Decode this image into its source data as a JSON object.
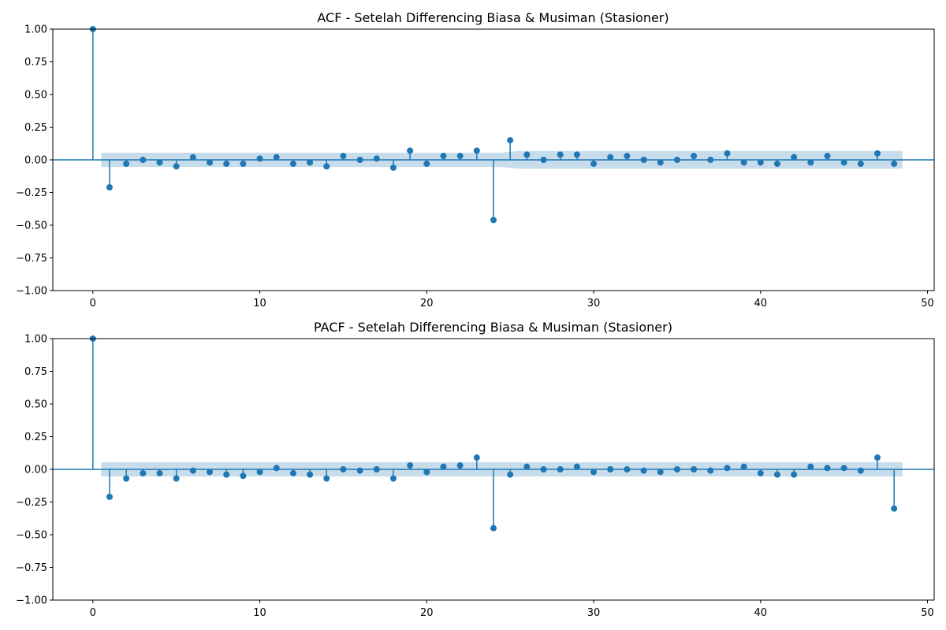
{
  "chart_data": [
    {
      "type": "stem",
      "title": "ACF - Setelah Differencing Biasa & Musiman (Stasioner)",
      "xlabel": "",
      "ylabel": "",
      "xlim": [
        -2.4,
        50.4
      ],
      "ylim": [
        -1.0,
        1.0
      ],
      "xticks": [
        0,
        10,
        20,
        30,
        40,
        50
      ],
      "yticks": [
        1.0,
        0.75,
        0.5,
        0.25,
        0.0,
        -0.25,
        -0.5,
        -0.75,
        -1.0
      ],
      "ytick_labels": [
        "1.00",
        "0.75",
        "0.50",
        "0.25",
        "0.00",
        "−0.25",
        "−0.50",
        "−0.75",
        "−1.00"
      ],
      "xtick_labels": [
        "0",
        "10",
        "20",
        "30",
        "40",
        "50"
      ],
      "lags": [
        0,
        1,
        2,
        3,
        4,
        5,
        6,
        7,
        8,
        9,
        10,
        11,
        12,
        13,
        14,
        15,
        16,
        17,
        18,
        19,
        20,
        21,
        22,
        23,
        24,
        25,
        26,
        27,
        28,
        29,
        30,
        31,
        32,
        33,
        34,
        35,
        36,
        37,
        38,
        39,
        40,
        41,
        42,
        43,
        44,
        45,
        46,
        47,
        48
      ],
      "values": [
        1.0,
        -0.21,
        -0.03,
        0.0,
        -0.02,
        -0.05,
        0.02,
        -0.02,
        -0.03,
        -0.03,
        0.01,
        0.02,
        -0.03,
        -0.02,
        -0.05,
        0.03,
        0.0,
        0.01,
        -0.06,
        0.07,
        -0.03,
        0.03,
        0.03,
        0.07,
        -0.46,
        0.15,
        0.04,
        0.0,
        0.04,
        0.04,
        -0.03,
        0.02,
        0.03,
        0.0,
        -0.02,
        0.0,
        0.03,
        0.0,
        0.05,
        -0.02,
        -0.02,
        -0.03,
        0.02,
        -0.02,
        0.03,
        -0.02,
        -0.03,
        0.05,
        -0.03
      ],
      "confidence_band": {
        "lags": [
          0.5,
          24.5,
          25.5,
          48.5
        ],
        "halfwidth": [
          0.055,
          0.055,
          0.068,
          0.068
        ]
      },
      "grid": false,
      "colors": {
        "stem": "#1f77b4",
        "band": "#1f77b4"
      }
    },
    {
      "type": "stem",
      "title": "PACF - Setelah Differencing Biasa & Musiman (Stasioner)",
      "xlabel": "",
      "ylabel": "",
      "xlim": [
        -2.4,
        50.4
      ],
      "ylim": [
        -1.0,
        1.0
      ],
      "xticks": [
        0,
        10,
        20,
        30,
        40,
        50
      ],
      "yticks": [
        1.0,
        0.75,
        0.5,
        0.25,
        0.0,
        -0.25,
        -0.5,
        -0.75,
        -1.0
      ],
      "ytick_labels": [
        "1.00",
        "0.75",
        "0.50",
        "0.25",
        "0.00",
        "−0.25",
        "−0.50",
        "−0.75",
        "−1.00"
      ],
      "xtick_labels": [
        "0",
        "10",
        "20",
        "30",
        "40",
        "50"
      ],
      "lags": [
        0,
        1,
        2,
        3,
        4,
        5,
        6,
        7,
        8,
        9,
        10,
        11,
        12,
        13,
        14,
        15,
        16,
        17,
        18,
        19,
        20,
        21,
        22,
        23,
        24,
        25,
        26,
        27,
        28,
        29,
        30,
        31,
        32,
        33,
        34,
        35,
        36,
        37,
        38,
        39,
        40,
        41,
        42,
        43,
        44,
        45,
        46,
        47,
        48
      ],
      "values": [
        1.0,
        -0.21,
        -0.07,
        -0.03,
        -0.03,
        -0.07,
        -0.01,
        -0.02,
        -0.04,
        -0.05,
        -0.02,
        0.01,
        -0.03,
        -0.04,
        -0.07,
        0.0,
        -0.01,
        0.0,
        -0.07,
        0.03,
        -0.02,
        0.02,
        0.03,
        0.09,
        -0.45,
        -0.04,
        0.02,
        0.0,
        0.0,
        0.02,
        -0.02,
        0.0,
        0.0,
        -0.01,
        -0.02,
        0.0,
        0.0,
        -0.01,
        0.01,
        0.02,
        -0.03,
        -0.04,
        -0.04,
        0.02,
        0.01,
        0.01,
        -0.01,
        0.09,
        -0.3
      ],
      "confidence_band": {
        "lags": [
          0.5,
          48.5
        ],
        "halfwidth": [
          0.055,
          0.055
        ]
      },
      "grid": false,
      "colors": {
        "stem": "#1f77b4",
        "band": "#1f77b4"
      }
    }
  ]
}
